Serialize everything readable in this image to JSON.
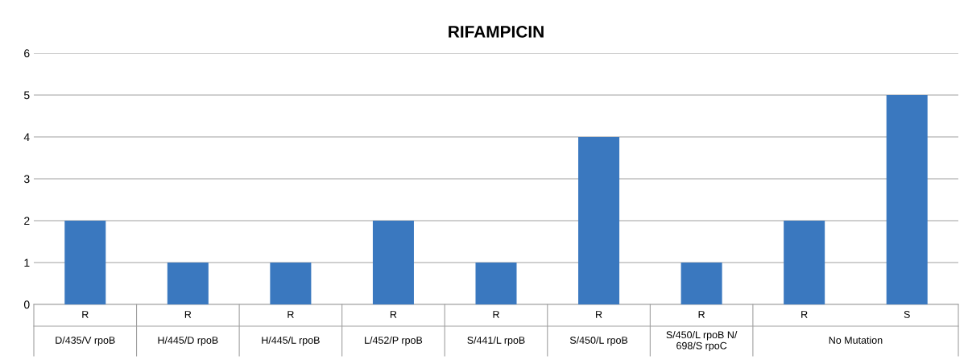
{
  "chart_data": {
    "type": "bar",
    "title": "RIFAMPICIN",
    "categories": [
      "R",
      "R",
      "R",
      "R",
      "R",
      "R",
      "R",
      "R",
      "S"
    ],
    "values": [
      2,
      1,
      1,
      2,
      1,
      4,
      1,
      2,
      5
    ],
    "color": "#3a78bf",
    "ylim": [
      0,
      6
    ],
    "yticks": [
      0,
      1,
      2,
      3,
      4,
      5,
      6
    ],
    "grid": "y",
    "legend": false,
    "annotations": [
      "D/435/V rpoB",
      "H/445/D rpoB",
      "H/445/L rpoB",
      "L/452/P rpoB",
      "S/441/L rpoB",
      "S/450/L rpoB",
      "S/450/L rpoB N/\n698/S rpoC",
      "No Mutation"
    ]
  }
}
